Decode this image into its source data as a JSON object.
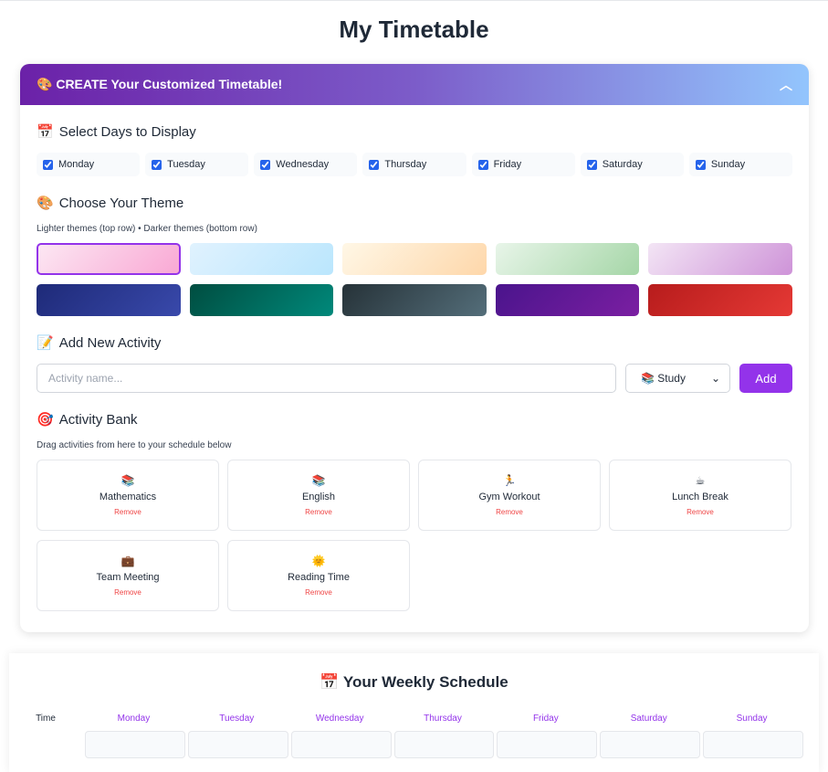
{
  "title": "My Timetable",
  "panel": {
    "icon": "🎨",
    "title": "CREATE Your Customized Timetable!"
  },
  "days_section": {
    "icon": "📅",
    "title": "Select Days to Display",
    "days": [
      "Monday",
      "Tuesday",
      "Wednesday",
      "Thursday",
      "Friday",
      "Saturday",
      "Sunday"
    ]
  },
  "theme_section": {
    "icon": "🎨",
    "title": "Choose Your Theme",
    "note": "Lighter themes (top row) • Darker themes (bottom row)",
    "themes": [
      [
        "#fce7f3",
        "#f9a8d4"
      ],
      [
        "#e0f2fe",
        "#bae6fd"
      ],
      [
        "#fff7e6",
        "#fed7aa"
      ],
      [
        "#e8f5e9",
        "#a5d6a7"
      ],
      [
        "#f3e5f5",
        "#ce93d8"
      ],
      [
        "#1e2a78",
        "#3949ab"
      ],
      [
        "#004d40",
        "#00897b"
      ],
      [
        "#263238",
        "#546e7a"
      ],
      [
        "#4a148c",
        "#7b1fa2"
      ],
      [
        "#b71c1c",
        "#e53935"
      ]
    ],
    "selected": 0
  },
  "add_section": {
    "icon": "📝",
    "title": "Add New Activity",
    "placeholder": "Activity name...",
    "category_icon": "📚",
    "category": "Study",
    "add_label": "Add"
  },
  "bank_section": {
    "icon": "🎯",
    "title": "Activity Bank",
    "note": "Drag activities from here to your schedule below",
    "remove_label": "Remove",
    "activities": [
      {
        "icon": "📚",
        "name": "Mathematics"
      },
      {
        "icon": "📚",
        "name": "English"
      },
      {
        "icon": "🏃",
        "name": "Gym Workout"
      },
      {
        "icon": "☕",
        "name": "Lunch Break"
      },
      {
        "icon": "💼",
        "name": "Team Meeting"
      },
      {
        "icon": "🌞",
        "name": "Reading Time"
      }
    ]
  },
  "schedule": {
    "icon": "📅",
    "title": "Your Weekly Schedule",
    "time_label": "Time",
    "days": [
      "Monday",
      "Tuesday",
      "Wednesday",
      "Thursday",
      "Friday",
      "Saturday",
      "Sunday"
    ]
  },
  "colors": {
    "accent": "#9333ea",
    "remove": "#ef4444"
  }
}
